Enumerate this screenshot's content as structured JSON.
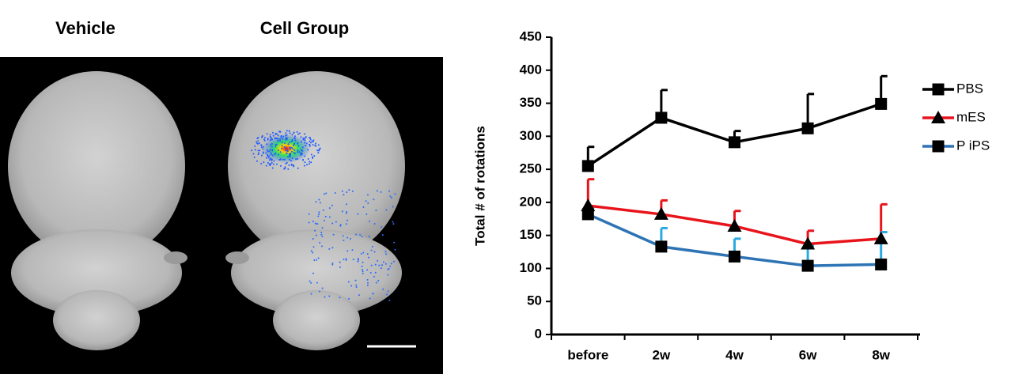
{
  "image_panel": {
    "labels": [
      "Vehicle",
      "Cell Group"
    ]
  },
  "chart_data": {
    "type": "line",
    "y_label": "Total # of rotations",
    "categories": [
      "before",
      "2w",
      "4w",
      "6w",
      "8w"
    ],
    "ylim": [
      0,
      450
    ],
    "yticks": [
      0,
      50,
      100,
      150,
      200,
      250,
      300,
      350,
      400,
      450
    ],
    "legend": "right",
    "series": [
      {
        "name": "PBS",
        "color": "#000000",
        "error_color": "#000000",
        "marker": "square",
        "values": [
          255,
          328,
          291,
          312,
          349
        ],
        "errors": [
          29,
          42,
          17,
          52,
          42
        ]
      },
      {
        "name": "mES",
        "color": "#e8141b",
        "error_color": "#e8141b",
        "marker": "triangle",
        "values": [
          195,
          182,
          164,
          137,
          145
        ],
        "errors": [
          40,
          21,
          23,
          20,
          52
        ]
      },
      {
        "name": "P iPS",
        "color": "#2e74b5",
        "error_color": "#29aae1",
        "marker": "square",
        "values": [
          182,
          133,
          118,
          104,
          106
        ],
        "errors": [
          10,
          28,
          27,
          30,
          49
        ]
      }
    ]
  }
}
